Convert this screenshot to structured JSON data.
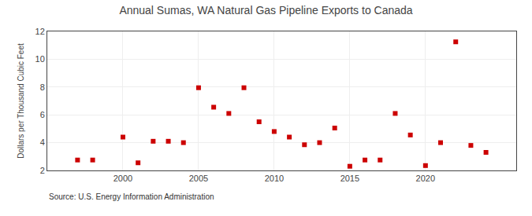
{
  "chart_data": {
    "type": "scatter",
    "title": "Annual Sumas, WA Natural Gas Pipeline Exports to Canada",
    "ylabel": "Dollars per Thousand Cubic Feet",
    "annotations": [
      "Source: U.S. Energy Information Administration"
    ],
    "x": [
      1997,
      1998,
      2000,
      2001,
      2002,
      2003,
      2004,
      2005,
      2006,
      2007,
      2008,
      2009,
      2010,
      2011,
      2012,
      2013,
      2014,
      2015,
      2016,
      2017,
      2018,
      2019,
      2020,
      2021,
      2022,
      2023,
      2024
    ],
    "values": [
      2.75,
      2.75,
      4.4,
      2.55,
      4.1,
      4.1,
      4.0,
      7.95,
      6.55,
      6.1,
      7.95,
      5.5,
      4.8,
      4.4,
      3.85,
      4.0,
      5.05,
      2.3,
      2.75,
      2.75,
      6.1,
      4.55,
      2.35,
      4.0,
      11.25,
      3.8,
      3.3
    ],
    "color": "#cc0000",
    "marker": "square",
    "xlim": [
      1995,
      2026
    ],
    "ylim": [
      2,
      12
    ],
    "xticks": [
      2000,
      2005,
      2010,
      2015,
      2020
    ],
    "yticks": [
      2,
      4,
      6,
      8,
      10,
      12
    ],
    "grid": true
  }
}
